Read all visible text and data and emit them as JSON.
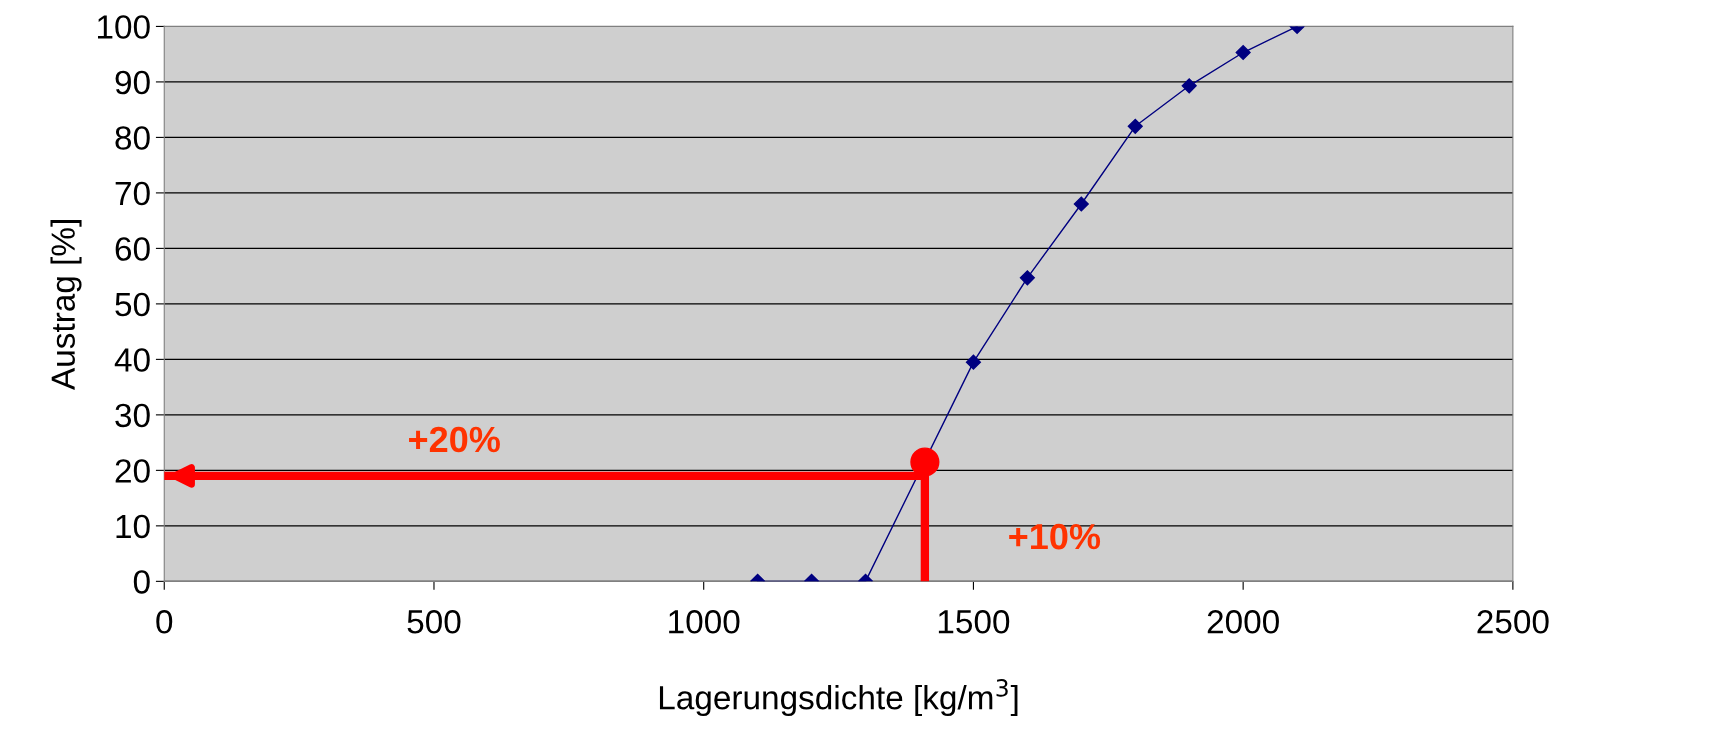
{
  "chart_data": {
    "type": "line",
    "xlabel": "Lagerungsdichte [kg/m$^{3}$]",
    "ylabel": "Austrag [%]",
    "xlim": [
      0,
      2500
    ],
    "xticks": [
      0,
      500,
      1000,
      1500,
      2000,
      2500
    ],
    "ylim": [
      0,
      100
    ],
    "yticks": [
      0,
      10,
      20,
      30,
      40,
      50,
      60,
      70,
      80,
      90,
      100
    ],
    "grid": "y",
    "series": [
      {
        "color": "#000080",
        "marker": "diamond",
        "x": [
          1100,
          1200,
          1300,
          1500,
          1600,
          1700,
          1800,
          1900,
          2000,
          2100
        ],
        "values": [
          0,
          0,
          0,
          39.5,
          54.7,
          68,
          82,
          89.3,
          95.3,
          100
        ]
      },
      {
        "color": "#ff0000",
        "marker": "none",
        "x": [
          1410,
          1410,
          0
        ],
        "values": [
          0,
          19,
          19
        ]
      },
      {
        "type": "scatter",
        "color": "#ff0000",
        "marker": "circle",
        "x": [
          1410
        ],
        "values": [
          21.5
        ]
      }
    ],
    "annotations": [
      "+20%",
      "+10%"
    ]
  }
}
